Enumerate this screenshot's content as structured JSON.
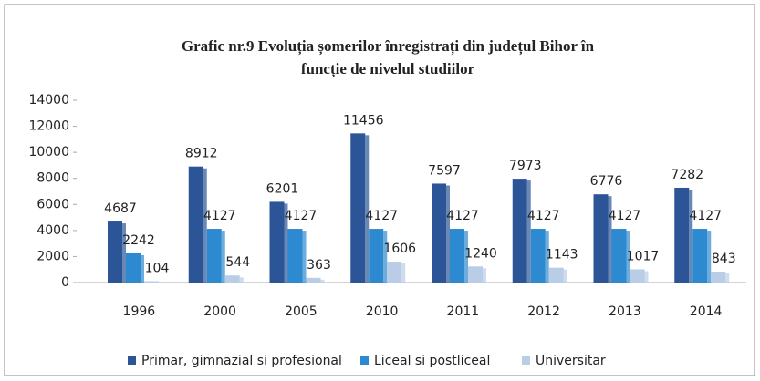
{
  "chart_data": {
    "type": "bar",
    "title": [
      "Grafic nr.9 Evoluția șomerilor înregistrați din județul Bihor în",
      "funcție de nivelul studiilor"
    ],
    "categories": [
      "1996",
      "2000",
      "2005",
      "2010",
      "2011",
      "2012",
      "2013",
      "2014"
    ],
    "series": [
      {
        "name": "Primar, gimnazial  si profesional",
        "color": "#2b5597",
        "values": [
          4687,
          8912,
          6201,
          11456,
          7597,
          7973,
          6776,
          7282
        ]
      },
      {
        "name": "Liceal si postliceal",
        "color": "#2e8ad0",
        "values": [
          2242,
          4127,
          4127,
          4127,
          4127,
          4127,
          4127,
          4127
        ]
      },
      {
        "name": "Universitar",
        "color": "#b9cde6",
        "values": [
          104,
          544,
          363,
          1606,
          1240,
          1143,
          1017,
          843
        ]
      }
    ],
    "ylim": [
      0,
      14000
    ],
    "yticks": [
      0,
      2000,
      4000,
      6000,
      8000,
      10000,
      12000,
      14000
    ],
    "legend": "bottom"
  }
}
